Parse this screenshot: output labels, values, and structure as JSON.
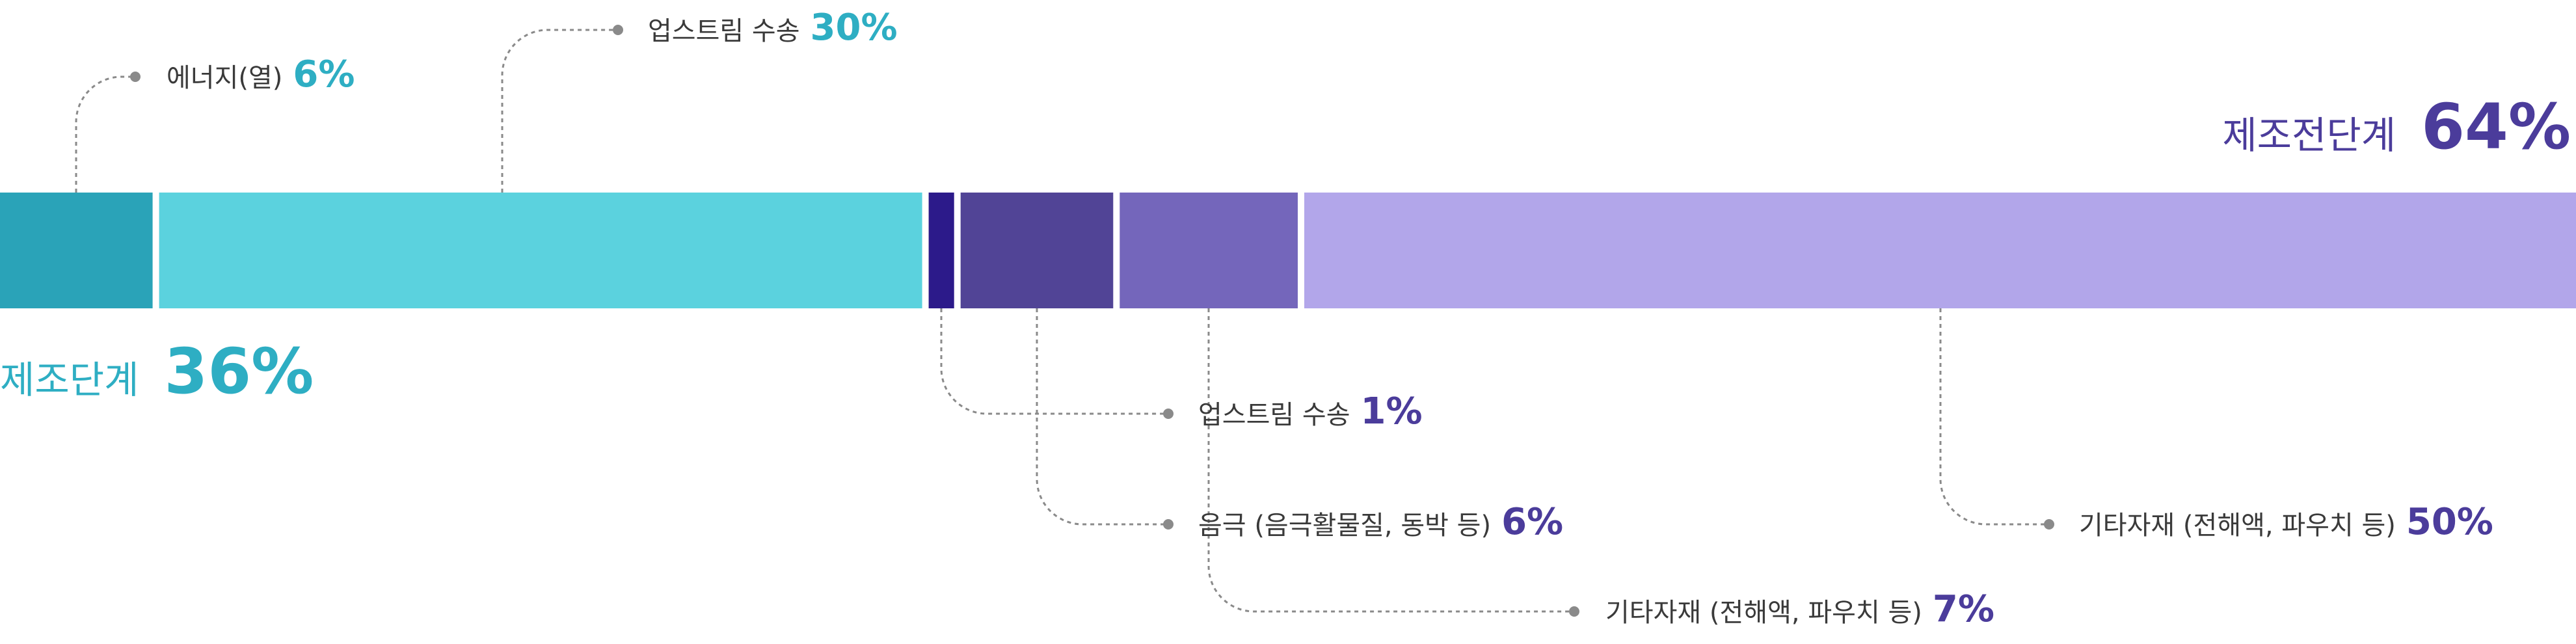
{
  "colors": {
    "teal_dark": "#2aa3b8",
    "teal_light": "#5bd2de",
    "navy": "#2c1a8a",
    "purple_dark": "#514496",
    "purple_mid": "#7466bb",
    "lavender": "#b2a6ea",
    "teal_text": "#2eaec3",
    "purple_text": "#4b3c9b",
    "label_text": "#3a3a3a",
    "connector": "#8a8a8a"
  },
  "chart_data": {
    "type": "bar",
    "orientation": "horizontal-stacked",
    "stages": [
      {
        "name": "제조단계",
        "value": "36%",
        "color": "#2eaec3"
      },
      {
        "name": "제조전단계",
        "value": "64%",
        "color": "#4b3c9b"
      }
    ],
    "segments": [
      {
        "label": "에너지(열)",
        "value": 6,
        "value_label": "6%",
        "stage": "제조단계",
        "color": "#2aa3b8",
        "text_color": "#2eaec3"
      },
      {
        "label": "업스트림 수송",
        "value": 30,
        "value_label": "30%",
        "stage": "제조단계",
        "color": "#5bd2de",
        "text_color": "#2eaec3"
      },
      {
        "label": "업스트림 수송",
        "value": 1,
        "value_label": "1%",
        "stage": "제조전단계",
        "color": "#2c1a8a",
        "text_color": "#4b3c9b"
      },
      {
        "label": "음극 (음극활물질, 동박 등)",
        "value": 6,
        "value_label": "6%",
        "stage": "제조전단계",
        "color": "#514496",
        "text_color": "#4b3c9b"
      },
      {
        "label": "기타자재 (전해액, 파우치 등)",
        "value": 7,
        "value_label": "7%",
        "stage": "제조전단계",
        "color": "#7466bb",
        "text_color": "#4b3c9b"
      },
      {
        "label": "기타자재 (전해액, 파우치 등)",
        "value": 50,
        "value_label": "50%",
        "stage": "제조전단계",
        "color": "#b2a6ea",
        "text_color": "#4b3c9b"
      }
    ]
  }
}
